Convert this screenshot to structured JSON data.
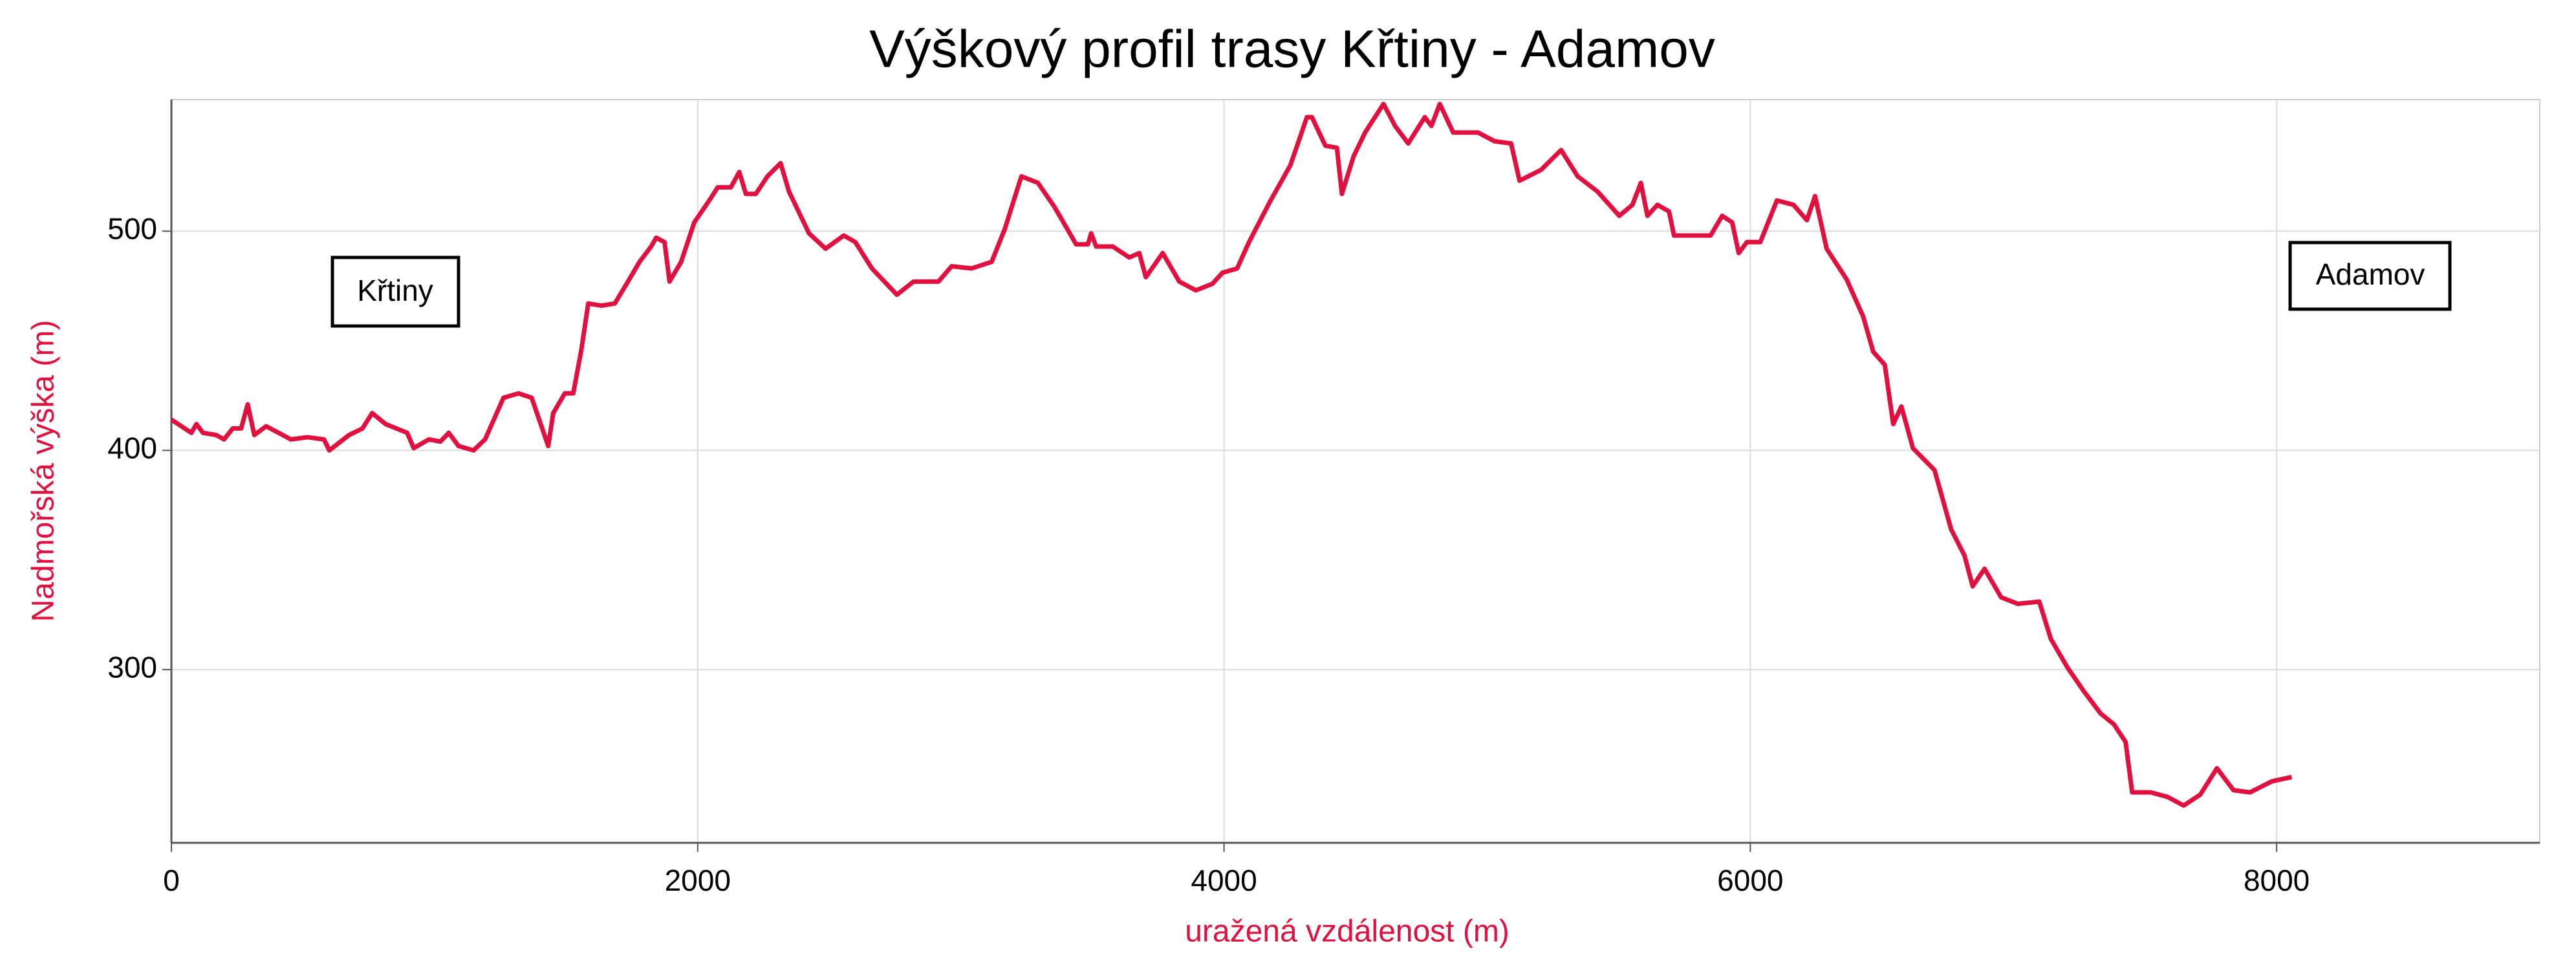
{
  "chart_data": {
    "type": "line",
    "title": "Výškový profil trasy Křtiny - Adamov",
    "x_label": "uražená vzdálenost (m)",
    "y_label": "Nadmořská výška (m)",
    "annotations": [
      "Křtiny",
      "Adamov"
    ],
    "xlim": [
      0,
      9000
    ],
    "xticks": [
      0,
      2000,
      4000,
      6000,
      8000
    ],
    "ylim": [
      221,
      560
    ],
    "yticks": [
      300,
      400,
      500
    ],
    "grid": true,
    "series": [
      {
        "name": "Nadmořská výška (m)",
        "color": "#e0103f",
        "x": [
          0,
          76,
          95,
          120,
          170,
          200,
          233,
          265,
          290,
          315,
          360,
          423,
          454,
          517,
          580,
          600,
          675,
          726,
          763,
          814,
          896,
          921,
          978,
          1022,
          1054,
          1091,
          1148,
          1192,
          1262,
          1319,
          1369,
          1432,
          1451,
          1495,
          1527,
          1558,
          1584,
          1634,
          1685,
          1735,
          1779,
          1823,
          1842,
          1874,
          1893,
          1937,
          1987,
          2044,
          2076,
          2126,
          2158,
          2183,
          2221,
          2265,
          2315,
          2347,
          2423,
          2486,
          2555,
          2599,
          2662,
          2757,
          2820,
          2915,
          2965,
          3041,
          3117,
          3167,
          3230,
          3293,
          3356,
          3438,
          3483,
          3495,
          3514,
          3577,
          3640,
          3678,
          3703,
          3767,
          3830,
          3893,
          3956,
          3994,
          4050,
          4095,
          4177,
          4252,
          4315,
          4334,
          4385,
          4429,
          4448,
          4492,
          4536,
          4606,
          4650,
          4700,
          4763,
          4788,
          4820,
          4871,
          4965,
          5028,
          5091,
          5123,
          5205,
          5281,
          5344,
          5420,
          5502,
          5552,
          5584,
          5609,
          5647,
          5691,
          5710,
          5754,
          5849,
          5893,
          5931,
          5956,
          5987,
          6038,
          6101,
          6164,
          6215,
          6246,
          6290,
          6366,
          6429,
          6467,
          6511,
          6543,
          6574,
          6618,
          6700,
          6763,
          6814,
          6845,
          6890,
          6953,
          7016,
          7098,
          7142,
          7205,
          7268,
          7331,
          7382,
          7426,
          7451,
          7521,
          7584,
          7647,
          7710,
          7773,
          7836,
          7899,
          7981,
          8057
        ],
        "values": [
          414,
          408,
          412,
          408,
          407,
          405,
          410,
          410,
          421,
          407,
          411,
          407,
          405,
          406,
          405,
          400,
          407,
          410,
          417,
          412,
          408,
          401,
          405,
          404,
          408,
          402,
          400,
          405,
          424,
          426,
          424,
          402,
          417,
          426,
          426,
          446,
          467,
          466,
          467,
          477,
          486,
          493,
          497,
          495,
          477,
          486,
          504,
          514,
          520,
          520,
          527,
          517,
          517,
          525,
          531,
          518,
          499,
          492,
          498,
          495,
          483,
          471,
          477,
          477,
          484,
          483,
          486,
          501,
          525,
          522,
          511,
          494,
          494,
          499,
          493,
          493,
          488,
          490,
          479,
          490,
          477,
          473,
          476,
          481,
          483,
          495,
          514,
          530,
          552,
          552,
          539,
          538,
          517,
          534,
          545,
          558,
          548,
          540,
          552,
          548,
          558,
          545,
          545,
          541,
          540,
          523,
          528,
          537,
          525,
          518,
          507,
          512,
          522,
          507,
          512,
          509,
          498,
          498,
          498,
          507,
          504,
          490,
          495,
          495,
          514,
          512,
          505,
          516,
          492,
          478,
          461,
          445,
          439,
          412,
          420,
          401,
          391,
          364,
          352,
          338,
          346,
          333,
          330,
          331,
          314,
          301,
          290,
          280,
          275,
          267,
          244,
          244,
          242,
          238,
          243,
          255,
          245,
          244,
          249,
          251
        ]
      }
    ]
  }
}
